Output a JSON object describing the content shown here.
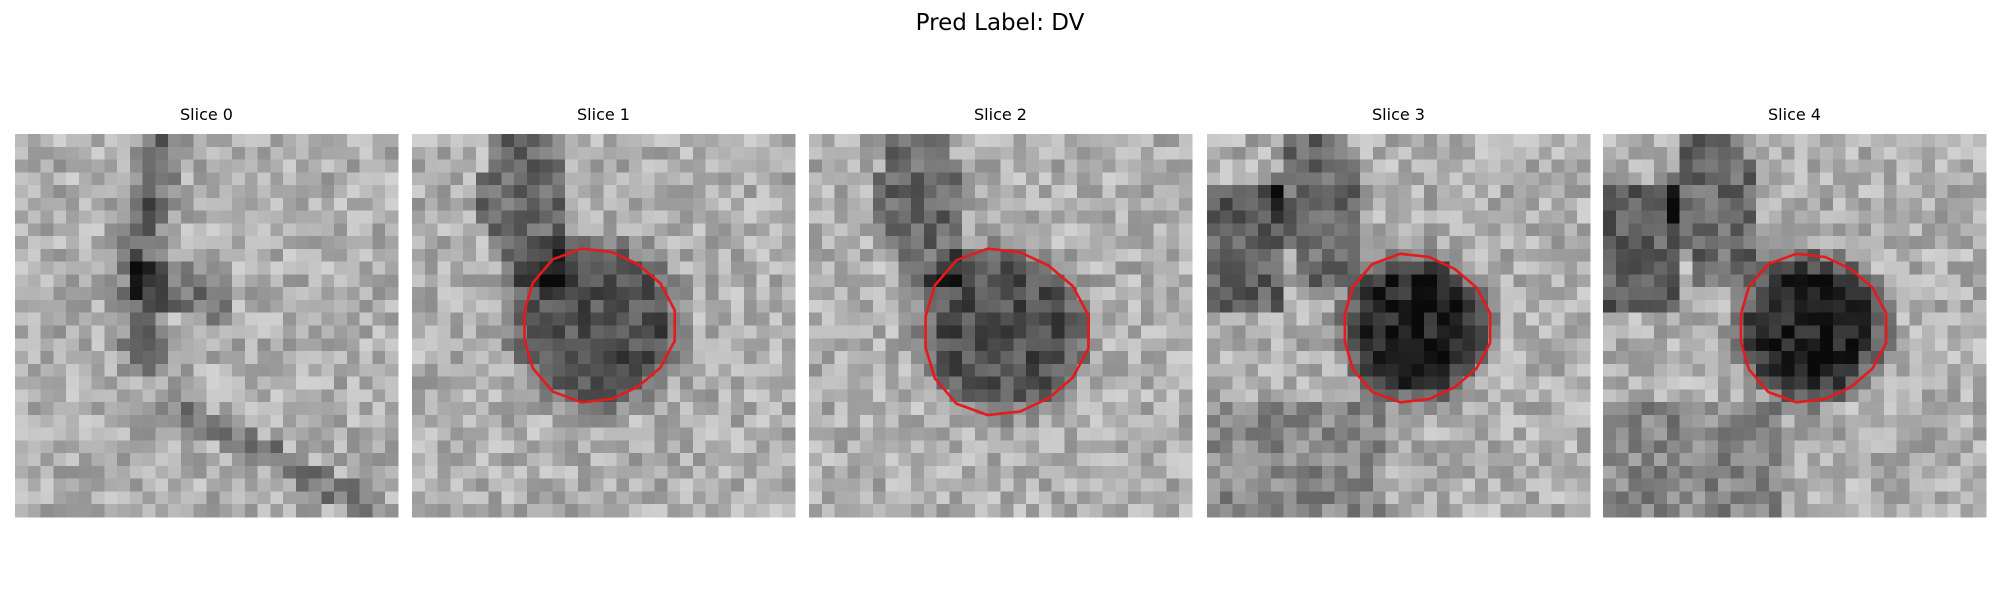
{
  "title": "Pred Label: DV",
  "panels": [
    {
      "title": "Slice 0"
    },
    {
      "title": "Slice 1"
    },
    {
      "title": "Slice 2"
    },
    {
      "title": "Slice 3"
    },
    {
      "title": "Slice 4"
    }
  ]
}
